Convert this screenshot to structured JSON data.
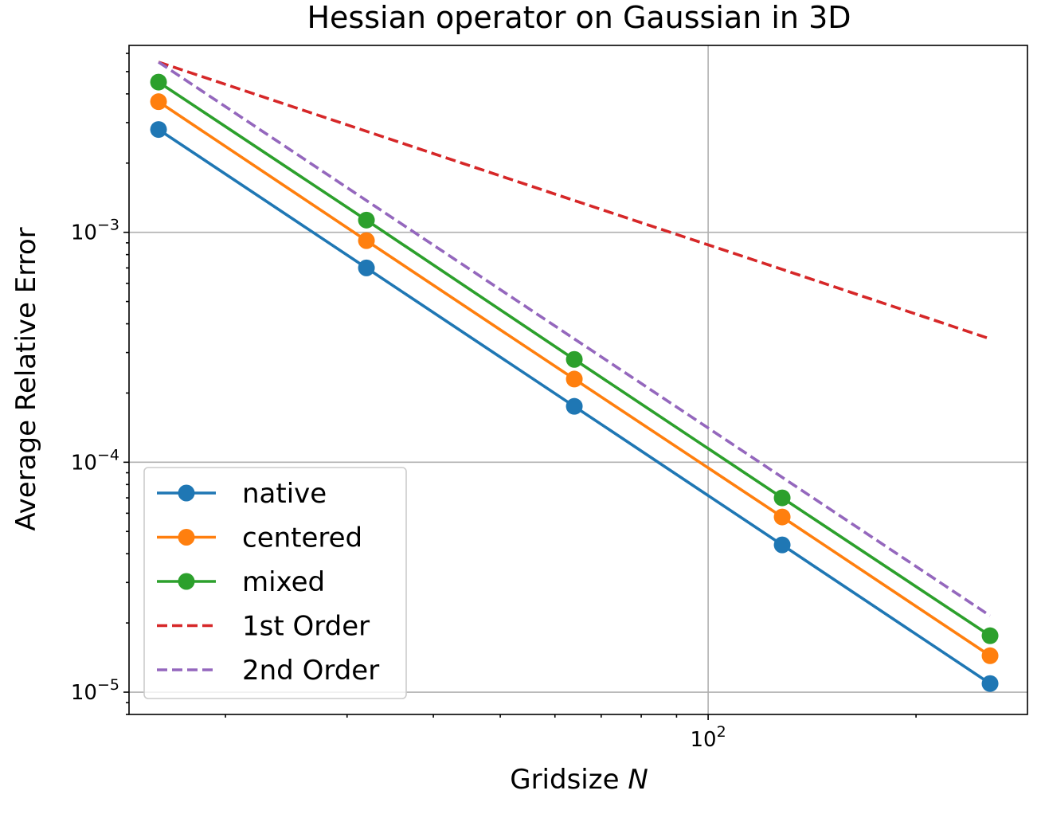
{
  "chart_data": {
    "type": "line",
    "title": "Hessian operator on Gaussian in 3D",
    "xlabel_prefix": "Gridsize ",
    "xlabel_var": "N",
    "ylabel": "Average Relative Error",
    "xscale": "log",
    "yscale": "log",
    "xlim": [
      14.5,
      290
    ],
    "ylim": [
      8e-06,
      0.0065
    ],
    "grid": true,
    "legend_position": "lower-left",
    "x": [
      16,
      32,
      64,
      128,
      256
    ],
    "x_ticks": [
      {
        "base": "10",
        "exp": "2",
        "value": 100
      }
    ],
    "y_ticks": [
      {
        "base": "10",
        "exp": "−3",
        "value": 0.001
      },
      {
        "base": "10",
        "exp": "−4",
        "value": 0.0001
      },
      {
        "base": "10",
        "exp": "−5",
        "value": 1e-05
      }
    ],
    "series": [
      {
        "name": "native",
        "color": "#1f77b4",
        "style": "solid-marker",
        "values": [
          0.0028,
          0.0007,
          0.000175,
          4.37e-05,
          1.09e-05
        ]
      },
      {
        "name": "centered",
        "color": "#ff7f0e",
        "style": "solid-marker",
        "values": [
          0.0037,
          0.00092,
          0.00023,
          5.78e-05,
          1.44e-05
        ]
      },
      {
        "name": "mixed",
        "color": "#2ca02c",
        "style": "solid-marker",
        "values": [
          0.0045,
          0.00113,
          0.00028,
          7e-05,
          1.76e-05
        ]
      },
      {
        "name": "1st Order",
        "color": "#d62728",
        "style": "dashed",
        "values": [
          0.0055,
          0.00275,
          0.001375,
          0.00069,
          0.000344
        ]
      },
      {
        "name": "2nd Order",
        "color": "#9467bd",
        "style": "dashed",
        "values": [
          0.0055,
          0.001375,
          0.000344,
          8.6e-05,
          2.15e-05
        ]
      }
    ]
  }
}
